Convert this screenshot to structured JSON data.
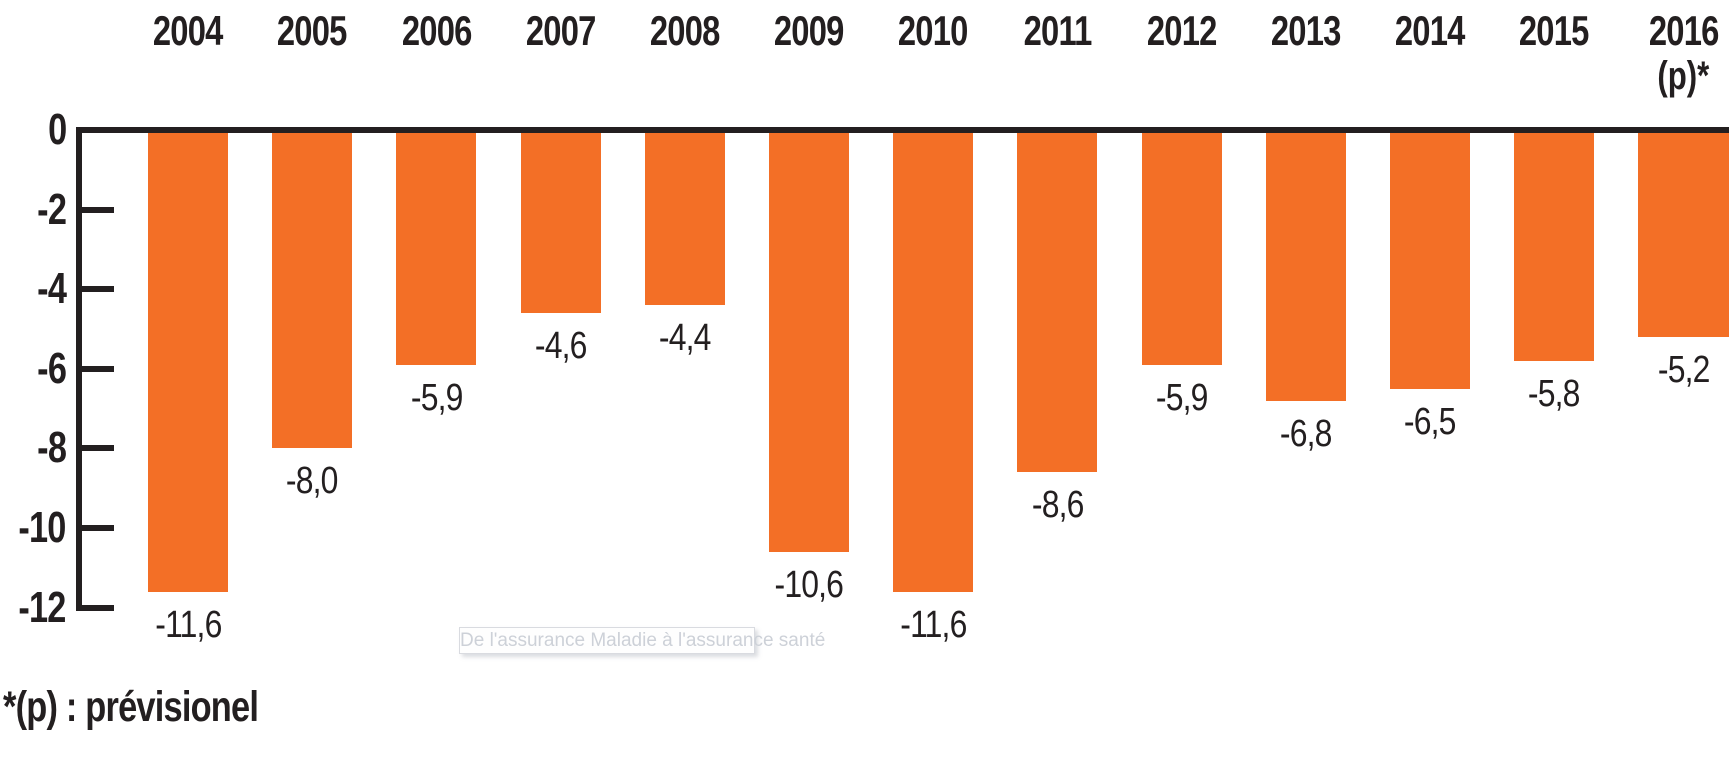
{
  "chart_data": {
    "type": "bar",
    "title": "",
    "xlabel": "",
    "ylabel": "",
    "categories": [
      "2004",
      "2005",
      "2006",
      "2007",
      "2008",
      "2009",
      "2010",
      "2011",
      "2012",
      "2013",
      "2014",
      "2015",
      "2016"
    ],
    "last_category_suffix": "(p)*",
    "values": [
      -11.6,
      -8.0,
      -5.9,
      -4.6,
      -4.4,
      -10.6,
      -11.6,
      -8.6,
      -5.9,
      -6.8,
      -6.5,
      -5.8,
      -5.2
    ],
    "value_labels": [
      "-11,6",
      "-8,0",
      "-5,9",
      "-4,6",
      "-4,4",
      "-10,6",
      "-11,6",
      "-8,6",
      "-5,9",
      "-6,8",
      "-6,5",
      "-5,8",
      "-5,2"
    ],
    "y_ticks": [
      0,
      -2,
      -4,
      -6,
      -8,
      -10,
      -12
    ],
    "y_tick_labels": [
      "0",
      "-2",
      "-4",
      "-6",
      "-8",
      "-10",
      "-12"
    ],
    "ylim": [
      -12,
      0
    ],
    "grid": false,
    "legend": false,
    "bar_color": "#f36f26",
    "axis_color": "#231f20",
    "text_color": "#231f20"
  },
  "footnote": "*(p) : prévisionel",
  "watermark": "De l'assurance Maladie à l'assurance santé"
}
